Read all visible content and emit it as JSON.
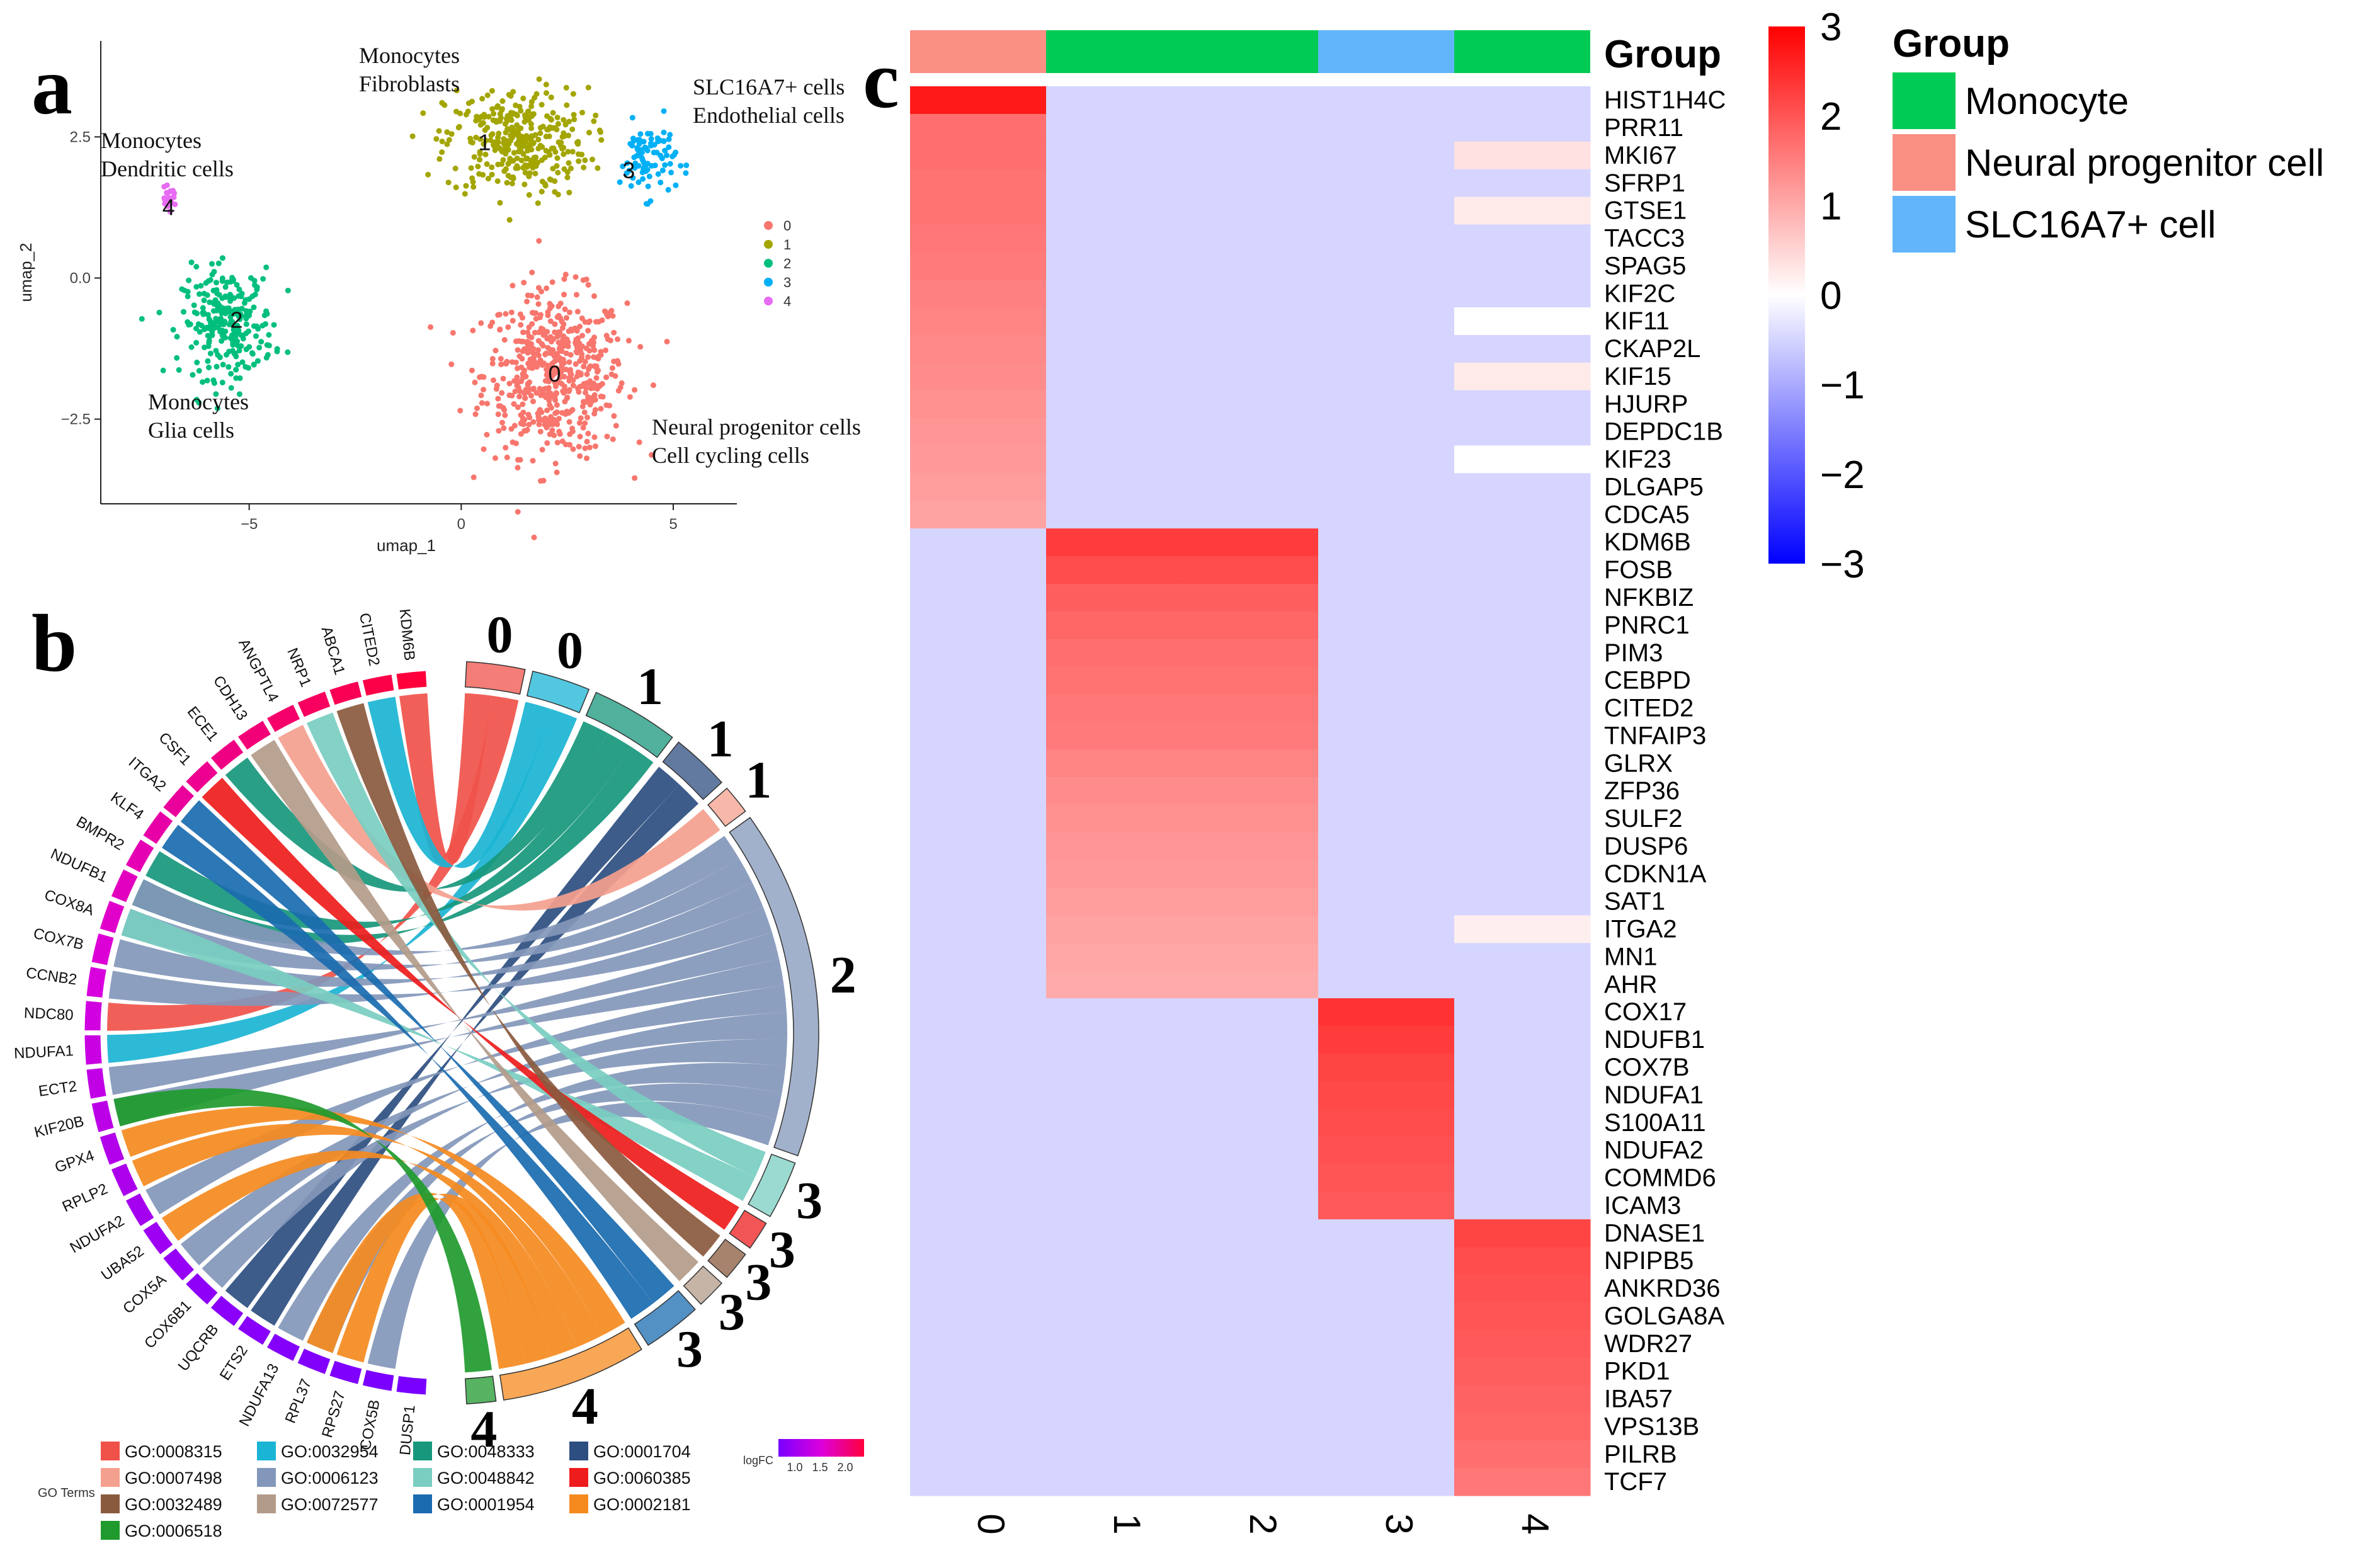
{
  "panel_letters": {
    "a": "a",
    "b": "b",
    "c": "c"
  },
  "chart_data": [
    {
      "type": "scatter",
      "panel": "a",
      "title": "",
      "xlabel": "umap_1",
      "ylabel": "umap_2",
      "xlim": [
        -8.5,
        6.5
      ],
      "ylim": [
        -4.0,
        4.2
      ],
      "xticks": [
        {
          "v": -5,
          "label": "−5"
        },
        {
          "v": 0,
          "label": "0"
        },
        {
          "v": 5,
          "label": "5"
        }
      ],
      "yticks": [
        {
          "v": -2.5,
          "label": "−2.5"
        },
        {
          "v": 0,
          "label": "0.0"
        },
        {
          "v": 2.5,
          "label": "2.5"
        }
      ],
      "legend": {
        "position": "right",
        "entries": [
          "0",
          "1",
          "2",
          "3",
          "4"
        ]
      },
      "series": [
        {
          "name": "0",
          "color": "#F8766D",
          "center": [
            2.2,
            -1.7
          ],
          "spread": [
            1.4,
            1.2
          ],
          "n": 560
        },
        {
          "name": "1",
          "color": "#A3A500",
          "center": [
            1.3,
            2.4
          ],
          "spread": [
            1.4,
            0.8
          ],
          "n": 330
        },
        {
          "name": "2",
          "color": "#00BF7D",
          "center": [
            -5.5,
            -0.8
          ],
          "spread": [
            0.9,
            0.8
          ],
          "n": 260
        },
        {
          "name": "3",
          "color": "#00B0F6",
          "center": [
            4.4,
            2.1
          ],
          "spread": [
            0.55,
            0.55
          ],
          "n": 90
        },
        {
          "name": "4",
          "color": "#E76BF3",
          "center": [
            -6.9,
            1.4
          ],
          "spread": [
            0.15,
            0.15
          ],
          "n": 25
        }
      ],
      "cluster_labels": [
        "0",
        "1",
        "2",
        "3",
        "4"
      ],
      "annotations": [
        {
          "text": "Monocytes",
          "cluster": "4",
          "line": 1
        },
        {
          "text": "Dendritic cells",
          "cluster": "4",
          "line": 2
        },
        {
          "text": "Monocytes",
          "cluster": "1",
          "line": 1
        },
        {
          "text": "Fibroblasts",
          "cluster": "1",
          "line": 2
        },
        {
          "text": "SLC16A7+ cells",
          "cluster": "3",
          "line": 1
        },
        {
          "text": "Endothelial cells",
          "cluster": "3",
          "line": 2
        },
        {
          "text": "Monocytes",
          "cluster": "2",
          "line": 1
        },
        {
          "text": "Glia cells",
          "cluster": "2",
          "line": 2
        },
        {
          "text": "Neural progenitor cells",
          "cluster": "0",
          "line": 1
        },
        {
          "text": "Cell cycling cells",
          "cluster": "0",
          "line": 2
        }
      ]
    },
    {
      "type": "chord",
      "panel": "b",
      "genes": [
        "KDM6B",
        "CITED2",
        "ABCA1",
        "NRP1",
        "ANGPTL4",
        "CDH13",
        "ECE1",
        "CSF1",
        "ITGA2",
        "KLF4",
        "BMPR2",
        "NDUFB1",
        "COX8A",
        "COX7B",
        "CCNB2",
        "NDC80",
        "NDUFA1",
        "ECT2",
        "KIF20B",
        "GPX4",
        "RPLP2",
        "NDUFA2",
        "UBA52",
        "COX5A",
        "COX6B1",
        "UQCRB",
        "ETS2",
        "NDUFA13",
        "RPL37",
        "RPS27",
        "COX5B",
        "DUSP1"
      ],
      "gene_logFC": [
        2.2,
        2.15,
        2.1,
        2.05,
        2.0,
        1.95,
        1.9,
        1.85,
        1.8,
        1.75,
        1.7,
        1.65,
        1.6,
        1.55,
        1.5,
        1.45,
        1.4,
        1.35,
        1.3,
        1.25,
        1.2,
        1.15,
        1.1,
        1.05,
        1.0,
        0.98,
        0.96,
        0.94,
        0.92,
        0.9,
        0.88,
        0.86
      ],
      "terms": [
        {
          "id": "GO:0008315",
          "cluster": "0",
          "color": "#F0524A",
          "size": 2
        },
        {
          "id": "GO:0032954",
          "cluster": "0",
          "color": "#1AB4D4",
          "size": 2
        },
        {
          "id": "GO:0048333",
          "cluster": "1",
          "color": "#17977C",
          "size": 3
        },
        {
          "id": "GO:0001704",
          "cluster": "1",
          "color": "#2D4E80",
          "size": 2
        },
        {
          "id": "GO:0007498",
          "cluster": "1",
          "color": "#F4A08E",
          "size": 1
        },
        {
          "id": "GO:0006123",
          "cluster": "2",
          "color": "#8397BA",
          "size": 12
        },
        {
          "id": "GO:0048842",
          "cluster": "3",
          "color": "#7ACDC1",
          "size": 2
        },
        {
          "id": "GO:0060385",
          "cluster": "3",
          "color": "#EE1C1C",
          "size": 1
        },
        {
          "id": "GO:0032489",
          "cluster": "3",
          "color": "#8A5A3E",
          "size": 1
        },
        {
          "id": "GO:0072577",
          "cluster": "3",
          "color": "#B39B8A",
          "size": 1
        },
        {
          "id": "GO:0001954",
          "cluster": "3",
          "color": "#1A6BB0",
          "size": 2
        },
        {
          "id": "GO:0002181",
          "cluster": "4",
          "color": "#F58A1F",
          "size": 5
        },
        {
          "id": "GO:0006518",
          "cluster": "4",
          "color": "#1F9A2E",
          "size": 1
        }
      ],
      "links": [
        {
          "term": 0,
          "genes": [
            0,
            15
          ]
        },
        {
          "term": 1,
          "genes": [
            1,
            16
          ]
        },
        {
          "term": 2,
          "genes": [
            6,
            10,
            11
          ]
        },
        {
          "term": 3,
          "genes": [
            25,
            26
          ]
        },
        {
          "term": 4,
          "genes": [
            4
          ]
        },
        {
          "term": 5,
          "genes": [
            11,
            12,
            13,
            14,
            17,
            18,
            21,
            23,
            24,
            27,
            28,
            30
          ]
        },
        {
          "term": 6,
          "genes": [
            3,
            12
          ]
        },
        {
          "term": 7,
          "genes": [
            7
          ]
        },
        {
          "term": 8,
          "genes": [
            2
          ]
        },
        {
          "term": 9,
          "genes": [
            5
          ]
        },
        {
          "term": 10,
          "genes": [
            8,
            9
          ]
        },
        {
          "term": 11,
          "genes": [
            19,
            20,
            22,
            28,
            29
          ]
        },
        {
          "term": 12,
          "genes": [
            18
          ]
        }
      ],
      "legend_title": "GO Terms",
      "legend_entries": [
        "GO:0008315",
        "GO:0007498",
        "GO:0032489",
        "GO:0006518",
        "GO:0032954",
        "GO:0006123",
        "GO:0072577",
        "GO:0048333",
        "GO:0048842",
        "GO:0001954",
        "GO:0001704",
        "GO:0060385",
        "GO:0002181"
      ],
      "legend_colors": [
        "#F0524A",
        "#F4A08E",
        "#8A5A3E",
        "#1F9A2E",
        "#1AB4D4",
        "#8397BA",
        "#B39B8A",
        "#17977C",
        "#7ACDC1",
        "#1A6BB0",
        "#2D4E80",
        "#EE1C1C",
        "#F58A1F"
      ],
      "colorbar": {
        "title": "logFC",
        "ticks": [
          "1.0",
          "1.5",
          "2.0"
        ]
      }
    },
    {
      "type": "heatmap",
      "panel": "c",
      "columns": [
        "0",
        "1",
        "2",
        "3",
        "4"
      ],
      "group_title": "Group",
      "column_groups": [
        "Neural progenitor cell",
        "Monocyte",
        "Monocyte",
        "SLC16A7+ cell",
        "Monocyte"
      ],
      "group_colors": {
        "Monocyte": "#00CC55",
        "Neural progenitor cell": "#FA8F84",
        "SLC16A7+ cell": "#62B5FA"
      },
      "group_legend": [
        "Monocyte",
        "Neural progenitor cell",
        "SLC16A7+ cell"
      ],
      "colorbar": {
        "range": [
          -3,
          3
        ],
        "ticks": [
          {
            "v": 3,
            "label": "3"
          },
          {
            "v": 2,
            "label": "2"
          },
          {
            "v": 1,
            "label": "1"
          },
          {
            "v": 0,
            "label": "0"
          },
          {
            "v": -1,
            "label": "−1"
          },
          {
            "v": -2,
            "label": "−2"
          },
          {
            "v": -3,
            "label": "−3"
          }
        ]
      },
      "rows": [
        "HIST1H4C",
        "PRR11",
        "MKI67",
        "SFRP1",
        "GTSE1",
        "TACC3",
        "SPAG5",
        "KIF2C",
        "KIF11",
        "CKAP2L",
        "KIF15",
        "HJURP",
        "DEPDC1B",
        "KIF23",
        "DLGAP5",
        "CDCA5",
        "KDM6B",
        "FOSB",
        "NFKBIZ",
        "PNRC1",
        "PIM3",
        "CEBPD",
        "CITED2",
        "TNFAIP3",
        "GLRX",
        "ZFP36",
        "SULF2",
        "DUSP6",
        "CDKN1A",
        "SAT1",
        "ITGA2",
        "MN1",
        "AHR",
        "COX17",
        "NDUFB1",
        "COX7B",
        "NDUFA1",
        "S100A11",
        "NDUFA2",
        "COMMD6",
        "ICAM3",
        "DNASE1",
        "NPIPB5",
        "ANKRD36",
        "GOLGA8A",
        "WDR27",
        "PKD1",
        "IBA57",
        "VPS13B",
        "PILRB",
        "TCF7"
      ],
      "values": [
        [
          2.7,
          -0.5,
          -0.5,
          -0.5,
          -0.5
        ],
        [
          1.7,
          -0.5,
          -0.5,
          -0.5,
          -0.5
        ],
        [
          1.7,
          -0.5,
          -0.5,
          -0.5,
          0.35
        ],
        [
          1.65,
          -0.5,
          -0.5,
          -0.5,
          -0.5
        ],
        [
          1.65,
          -0.5,
          -0.5,
          -0.5,
          0.25
        ],
        [
          1.6,
          -0.5,
          -0.5,
          -0.5,
          -0.5
        ],
        [
          1.55,
          -0.5,
          -0.5,
          -0.5,
          -0.5
        ],
        [
          1.5,
          -0.5,
          -0.5,
          -0.5,
          -0.5
        ],
        [
          1.45,
          -0.5,
          -0.5,
          -0.5,
          0.0
        ],
        [
          1.4,
          -0.5,
          -0.5,
          -0.5,
          -0.5
        ],
        [
          1.35,
          -0.5,
          -0.5,
          -0.5,
          0.25
        ],
        [
          1.3,
          -0.5,
          -0.5,
          -0.5,
          -0.5
        ],
        [
          1.25,
          -0.5,
          -0.5,
          -0.5,
          -0.5
        ],
        [
          1.2,
          -0.5,
          -0.5,
          -0.5,
          0.0
        ],
        [
          1.15,
          -0.5,
          -0.5,
          -0.5,
          -0.5
        ],
        [
          1.1,
          -0.5,
          -0.5,
          -0.5,
          -0.5
        ],
        [
          -0.5,
          2.3,
          2.3,
          -0.5,
          -0.5
        ],
        [
          -0.5,
          2.1,
          2.1,
          -0.5,
          -0.5
        ],
        [
          -0.5,
          1.9,
          1.9,
          -0.5,
          -0.5
        ],
        [
          -0.5,
          1.8,
          1.8,
          -0.5,
          -0.5
        ],
        [
          -0.5,
          1.7,
          1.7,
          -0.5,
          -0.5
        ],
        [
          -0.5,
          1.65,
          1.65,
          -0.5,
          -0.5
        ],
        [
          -0.5,
          1.6,
          1.6,
          -0.5,
          -0.5
        ],
        [
          -0.5,
          1.55,
          1.55,
          -0.5,
          -0.5
        ],
        [
          -0.5,
          1.45,
          1.45,
          -0.5,
          -0.5
        ],
        [
          -0.5,
          1.35,
          1.35,
          -0.5,
          -0.5
        ],
        [
          -0.5,
          1.3,
          1.3,
          -0.5,
          -0.5
        ],
        [
          -0.5,
          1.25,
          1.25,
          -0.5,
          -0.5
        ],
        [
          -0.5,
          1.2,
          1.2,
          -0.5,
          -0.5
        ],
        [
          -0.5,
          1.15,
          1.15,
          -0.5,
          -0.5
        ],
        [
          -0.5,
          1.1,
          1.1,
          -0.5,
          0.2
        ],
        [
          -0.5,
          1.05,
          1.05,
          -0.5,
          -0.5
        ],
        [
          -0.5,
          1.0,
          1.0,
          -0.5,
          -0.5
        ],
        [
          -0.5,
          -0.5,
          -0.5,
          2.4,
          -0.5
        ],
        [
          -0.5,
          -0.5,
          -0.5,
          2.3,
          -0.5
        ],
        [
          -0.5,
          -0.5,
          -0.5,
          2.2,
          -0.5
        ],
        [
          -0.5,
          -0.5,
          -0.5,
          2.15,
          -0.5
        ],
        [
          -0.5,
          -0.5,
          -0.5,
          2.1,
          -0.5
        ],
        [
          -0.5,
          -0.5,
          -0.5,
          2.05,
          -0.5
        ],
        [
          -0.5,
          -0.5,
          -0.5,
          2.0,
          -0.5
        ],
        [
          -0.5,
          -0.5,
          -0.5,
          1.95,
          -0.5
        ],
        [
          -0.5,
          -0.5,
          -0.5,
          -0.5,
          2.2
        ],
        [
          -0.5,
          -0.5,
          -0.5,
          -0.5,
          2.1
        ],
        [
          -0.5,
          -0.5,
          -0.5,
          -0.5,
          2.05
        ],
        [
          -0.5,
          -0.5,
          -0.5,
          -0.5,
          2.0
        ],
        [
          -0.5,
          -0.5,
          -0.5,
          -0.5,
          1.95
        ],
        [
          -0.5,
          -0.5,
          -0.5,
          -0.5,
          1.9
        ],
        [
          -0.5,
          -0.5,
          -0.5,
          -0.5,
          1.85
        ],
        [
          -0.5,
          -0.5,
          -0.5,
          -0.5,
          1.8
        ],
        [
          -0.5,
          -0.5,
          -0.5,
          -0.5,
          1.7
        ],
        [
          -0.5,
          -0.5,
          -0.5,
          -0.5,
          1.6
        ]
      ]
    }
  ]
}
